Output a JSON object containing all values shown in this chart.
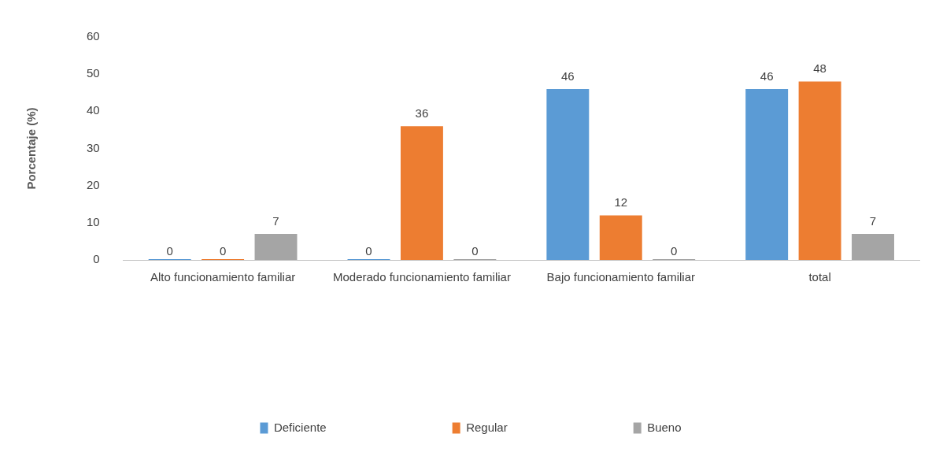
{
  "chart_data": {
    "type": "bar",
    "ylabel": "Porcentaje (%)",
    "categories": [
      "Alto funcionamiento familiar",
      "Moderado funcionamiento familiar",
      "Bajo funcionamiento familiar",
      "total"
    ],
    "series": [
      {
        "name": "Deficiente",
        "color": "#5b9bd5",
        "values": [
          0,
          0,
          46,
          46
        ]
      },
      {
        "name": "Regular",
        "color": "#ed7d31",
        "values": [
          0,
          36,
          12,
          48
        ]
      },
      {
        "name": "Bueno",
        "color": "#a5a5a5",
        "values": [
          7,
          0,
          0,
          7
        ]
      }
    ],
    "ylim": [
      0,
      60
    ],
    "yticks": [
      0,
      10,
      20,
      30,
      40,
      50,
      60
    ],
    "grid": false,
    "legend": "bottom",
    "data_labels": true
  }
}
